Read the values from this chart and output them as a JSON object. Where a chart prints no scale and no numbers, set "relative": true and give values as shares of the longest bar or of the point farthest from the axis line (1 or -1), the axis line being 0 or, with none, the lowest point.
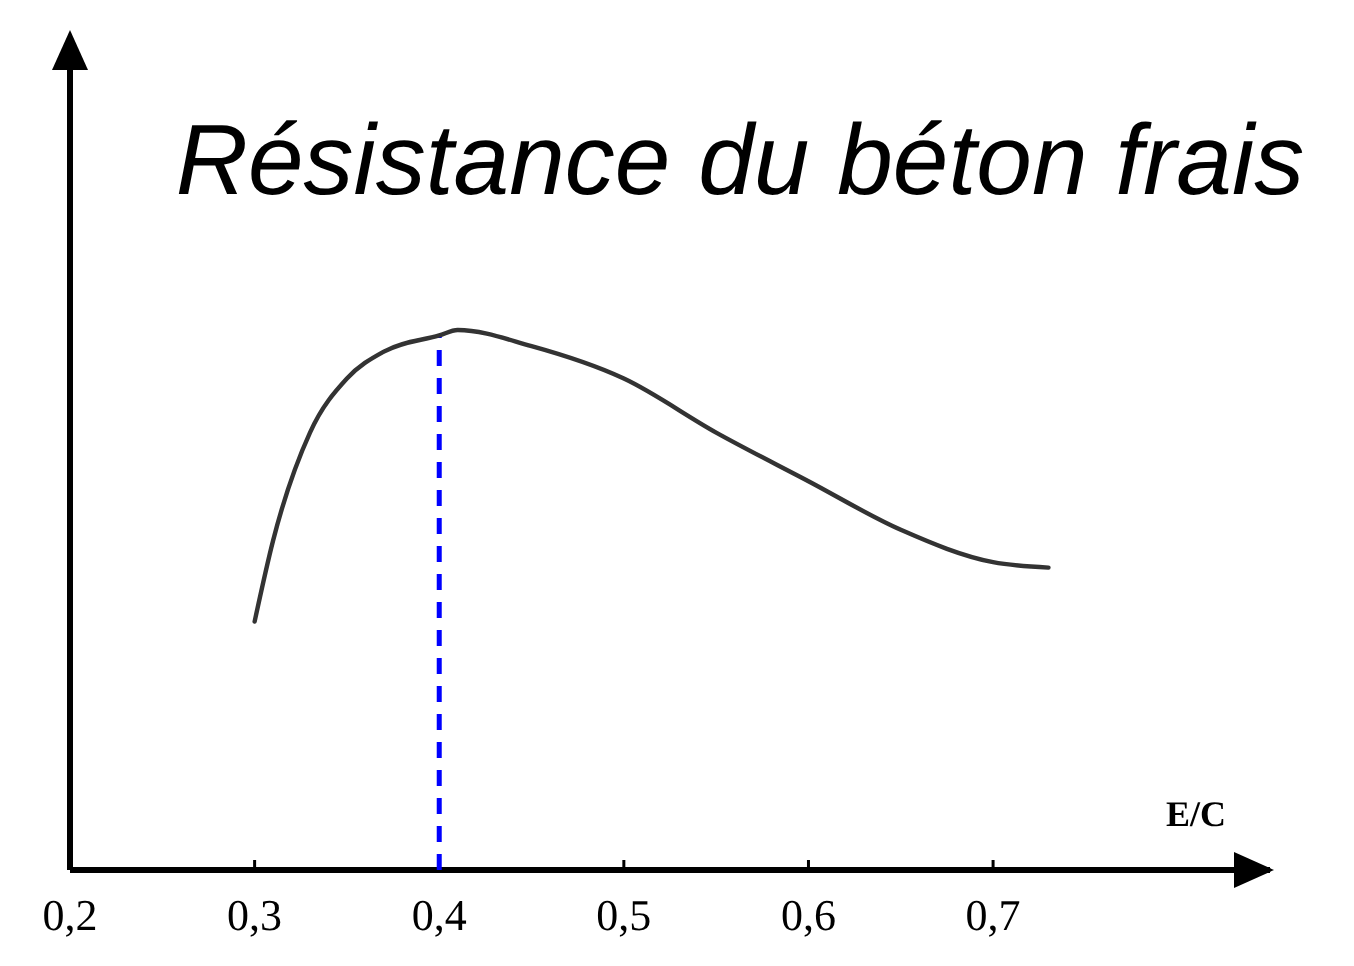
{
  "chart_data": {
    "type": "line",
    "title": "Résistance du béton frais",
    "xlabel": "E/C",
    "relative": true,
    "x": [
      0.3,
      0.31,
      0.33,
      0.35,
      0.37,
      0.4,
      0.41,
      0.45,
      0.5,
      0.55,
      0.6,
      0.65,
      0.7,
      0.73
    ],
    "series": [
      {
        "color": "#333333",
        "values": [
          0.46,
          0.61,
          0.81,
          0.91,
          0.96,
          0.99,
          1,
          0.97,
          0.91,
          0.81,
          0.72,
          0.63,
          0.57,
          0.56
        ]
      }
    ],
    "xlim": [
      0.2,
      0.85
    ],
    "xticks": [
      {
        "value": 0.2,
        "label": "0,2"
      },
      {
        "value": 0.3,
        "label": "0,3"
      },
      {
        "value": 0.4,
        "label": "0,4"
      },
      {
        "value": 0.5,
        "label": "0,5"
      },
      {
        "value": 0.6,
        "label": "0,6"
      },
      {
        "value": 0.7,
        "label": "0,7"
      }
    ],
    "ref_lines": [
      {
        "axis": "x",
        "value": 0.4,
        "color": "#0000ff",
        "line_style": "dashed"
      }
    ],
    "marker": "none",
    "line_style": "solid",
    "grid": false
  }
}
